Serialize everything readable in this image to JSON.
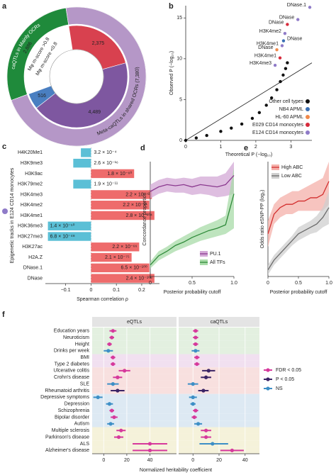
{
  "chart_data": [
    {
      "panel": "a",
      "type": "donut",
      "outer": [
        {
          "label": "caQTLs in Mainly OCRs",
          "value": 2886,
          "value_label": "2,886",
          "color": "#1f8a3b"
        },
        {
          "label": "Meta-caQTLs in shared OCRs (7,380)",
          "value": 7380,
          "color": "#b597c7"
        }
      ],
      "inner": [
        {
          "value": 2375,
          "value_label": "2,375",
          "color": "#d8414f"
        },
        {
          "value": 4489,
          "value_label": "4,489",
          "color": "#7e57a0"
        },
        {
          "value": 516,
          "value_label": "516",
          "color": "#4a7fc1"
        }
      ],
      "annotations": [
        {
          "text": "Mφ m-score >0.8",
          "color": "#4a7fc1"
        },
        {
          "text": "Mφ m-score <0.8",
          "color": "#d8414f"
        }
      ]
    },
    {
      "panel": "b",
      "type": "scatter",
      "xlabel": "Theoretical P (−log₁₀)",
      "ylabel": "Observed P (−log₁₀)",
      "xlim": [
        0,
        3.6
      ],
      "ylim": [
        0,
        16.5
      ],
      "xticks": [
        0,
        1,
        2,
        3
      ],
      "yticks": [
        0,
        5,
        10,
        15
      ],
      "reference_line": {
        "x": [
          0,
          3.6
        ],
        "y": [
          0,
          9.5
        ]
      },
      "series": [
        {
          "name": "Other cell types",
          "color": "#111111",
          "x": [
            0,
            0.3,
            0.6,
            1,
            1.3,
            1.6,
            1.9,
            2.1,
            2.3,
            2.45,
            2.6,
            2.7,
            2.78,
            2.85,
            2.9
          ],
          "y": [
            0,
            0.3,
            0.6,
            1.1,
            1.5,
            2,
            2.7,
            3.4,
            4.3,
            5.2,
            6.2,
            7.2,
            8,
            8.8,
            9.5
          ]
        },
        {
          "name": "NB4 APML",
          "color": "#3a6fb5",
          "x": [
            2.79
          ],
          "y": [
            12.2
          ],
          "labels": [
            "DNase"
          ]
        },
        {
          "name": "HL-60 APML",
          "color": "#f08a4b",
          "x": [
            2.6
          ],
          "y": [
            11.1
          ],
          "labels": [
            "DNase"
          ]
        },
        {
          "name": "E029 CD14 monocytes",
          "color": "#d62b3c",
          "x": [
            2.9,
            2.69
          ],
          "y": [
            14.2,
            10.1
          ],
          "labels": [
            "DNase",
            "H3K4me1"
          ]
        },
        {
          "name": "E124 CD14 monocytes",
          "color": "#8f7bc8",
          "x": [
            3.54,
            3.2,
            2.83,
            2.75,
            2.55
          ],
          "y": [
            16.3,
            14.8,
            13.1,
            11.6,
            9.2
          ],
          "labels": [
            "DNase.1",
            "DNase",
            "H3K4me2",
            "H3K4me1",
            "H3K4me3"
          ]
        }
      ],
      "legend": "lower right"
    },
    {
      "panel": "c",
      "type": "hbar",
      "xlabel": "Spearman correlation ρ",
      "ylabel": "Epigenetic tracks in E124 CD14 monocytes",
      "categories": [
        "H4K20Me1",
        "H3K9me3",
        "H3K9ac",
        "H3K79me2",
        "H3K4me3",
        "H3K4me2",
        "H3K4me1",
        "H3K36me3",
        "H3K27me3",
        "H3K27ac",
        "H2A.Z",
        "DNase.1",
        "DNase"
      ],
      "values": [
        -0.04,
        -0.07,
        0.17,
        -0.07,
        0.24,
        0.23,
        0.25,
        -0.17,
        -0.17,
        0.19,
        0.16,
        0.23,
        0.25
      ],
      "p_labels": [
        "3.2 × 10⁻⁴",
        "2.6 × 10⁻¹⁶",
        "1.8 × 10⁻⁶⁰",
        "1.9 × 10⁻¹¹",
        "2.2 × 10⁻⁷²",
        "2.2 × 10⁻⁸¹",
        "2.8 × 10⁻¹⁰⁴",
        "1.4 × 10⁻⁵⁰",
        "6.8 × 10⁻⁴⁸",
        "2.2 × 10⁻⁶⁶",
        "2.1 × 10⁻⁷⁵",
        "6.5 × 10⁻¹⁰⁰",
        "2.4 × 10⁻¹⁰⁶"
      ],
      "label_colors": [
        "#8a7aa6",
        "#7a3d8f",
        "#2e8b3a",
        "#2e8b3a",
        "#2e8b3a",
        "#2e8b3a",
        "#2e8b3a",
        "#7a3d8f",
        "#7a3d8f",
        "#2e8b3a",
        "#777777",
        "#777777",
        "#777777"
      ],
      "positive_color": "#ee6b6b",
      "negative_color": "#5bbfd6",
      "marker_color": "#8f7bc8",
      "xlim": [
        -0.18,
        0.27
      ],
      "xticks": [
        {
          "value": -0.1,
          "label": "−0.1"
        },
        0,
        0.1,
        0.2
      ]
    },
    {
      "panel": "d",
      "type": "line",
      "xlabel": "Posterior probability cutoff",
      "ylabel": "Concordance proportion",
      "x": [
        0,
        0.1,
        0.2,
        0.3,
        0.4,
        0.5,
        0.6,
        0.7,
        0.8,
        0.9,
        1
      ],
      "xlim": [
        0,
        1
      ],
      "ylim": [
        0,
        1
      ],
      "xticks": [
        0,
        0.5,
        {
          "value": 1,
          "label": "1.0"
        }
      ],
      "series": [
        {
          "name": "PU.1",
          "color": "#8b3a8f",
          "band_color": "#d3a8d6",
          "values": [
            0.74,
            0.78,
            0.8,
            0.79,
            0.8,
            0.78,
            0.8,
            0.79,
            0.78,
            0.8,
            0.88
          ],
          "lower": [
            0.68,
            0.72,
            0.74,
            0.73,
            0.73,
            0.71,
            0.72,
            0.71,
            0.69,
            0.7,
            0.72
          ],
          "upper": [
            0.8,
            0.84,
            0.86,
            0.85,
            0.86,
            0.85,
            0.87,
            0.87,
            0.87,
            0.9,
            1
          ]
        },
        {
          "name": "All TFs",
          "color": "#2f8a3a",
          "band_color": "#a8dba8",
          "values": [
            0.1,
            0.18,
            0.22,
            0.27,
            0.3,
            0.34,
            0.37,
            0.4,
            0.42,
            0.45,
            0.72
          ],
          "lower": [
            0.07,
            0.14,
            0.18,
            0.22,
            0.25,
            0.28,
            0.31,
            0.33,
            0.35,
            0.37,
            0.42
          ],
          "upper": [
            0.13,
            0.22,
            0.26,
            0.31,
            0.35,
            0.39,
            0.43,
            0.46,
            0.49,
            0.53,
            0.95
          ]
        }
      ],
      "legend": "lower right"
    },
    {
      "panel": "e",
      "type": "line",
      "xlabel": "Posterior probability cutoff",
      "ylabel": "Odds ratio eSNP-PP (log₂)",
      "x": [
        0,
        0.1,
        0.2,
        0.3,
        0.4,
        0.5,
        0.6,
        0.7,
        0.8,
        0.9,
        1
      ],
      "xlim": [
        0,
        1
      ],
      "ylim": [
        0,
        3.5
      ],
      "xticks": [
        0,
        0.5,
        {
          "value": 1,
          "label": "1.0"
        }
      ],
      "series": [
        {
          "name": "High ABC",
          "color": "#d32f2f",
          "band_color": "#f4b0aa",
          "values": [
            1.3,
            1.9,
            2.1,
            2.2,
            2.2,
            2.3,
            2.3,
            2.4,
            2.4,
            2.5,
            2.9
          ],
          "lower": [
            0.9,
            1.6,
            1.8,
            1.9,
            1.9,
            2,
            2,
            2,
            2,
            2,
            2.2
          ],
          "upper": [
            1.7,
            2.2,
            2.4,
            2.5,
            2.6,
            2.6,
            2.7,
            2.8,
            2.9,
            3,
            3.5
          ]
        },
        {
          "name": "Low ABC",
          "color": "#6b6b6b",
          "band_color": "#cfcfcf",
          "values": [
            0.2,
            0.5,
            0.7,
            0.9,
            1.1,
            1.3,
            1.4,
            1.5,
            1.6,
            1.8,
            2.1
          ],
          "lower": [
            0.05,
            0.35,
            0.55,
            0.75,
            0.95,
            1.1,
            1.2,
            1.3,
            1.35,
            1.5,
            1.6
          ],
          "upper": [
            0.35,
            0.65,
            0.85,
            1.05,
            1.25,
            1.5,
            1.6,
            1.7,
            1.85,
            2.1,
            2.6
          ]
        }
      ],
      "legend": "upper left"
    },
    {
      "panel": "f",
      "type": "forest",
      "xlabel": "Normalized heritability coefficient",
      "categories": [
        "Education years",
        "Neuroticism",
        "Height",
        "Drinks per week",
        "BMI",
        "Type 2 diabetes",
        "Ulcerative colitis",
        "Crohn's disease",
        "SLE",
        "Rheumatoid arthritis",
        "Depressive symptoms",
        "Depression",
        "Schizophrenia",
        "Bipolar disorder",
        "Autism",
        "Multiple sclerosis",
        "Parkinson's disease",
        "ALS",
        "Alzheimer's disease"
      ],
      "band_colors": [
        "#e3f0e0",
        "#e3f0e0",
        "#e3f0e0",
        "#e3f0e0",
        "#f1e0f0",
        "#f1e0f0",
        "#f8e0df",
        "#f8e0df",
        "#f8e0df",
        "#f8e0df",
        "#dde9f3",
        "#dde9f3",
        "#dde9f3",
        "#dde9f3",
        "#dde9f3",
        "#f5f2da",
        "#f5f2da",
        "#f5f2da",
        "#f5f2da"
      ],
      "legend": [
        {
          "name": "FDR < 0.05",
          "color": "#d6399c"
        },
        {
          "name": "P < 0.05",
          "color": "#3b2466"
        },
        {
          "name": "NS",
          "color": "#3d8fc6"
        }
      ],
      "facets": [
        {
          "title": "eQTLs",
          "xlim": [
            -10,
            63
          ],
          "xticks": [
            0,
            20,
            40
          ],
          "values": [
            8,
            7,
            5,
            4,
            8,
            8,
            18,
            12,
            8,
            12,
            -5,
            5,
            7,
            9,
            6,
            15,
            13,
            40,
            40
          ],
          "lower": [
            5,
            5,
            3,
            0,
            6,
            6,
            13,
            8,
            3,
            6,
            -9,
            2,
            5,
            6,
            3,
            11,
            9,
            25,
            25
          ],
          "upper": [
            11,
            9,
            7,
            8,
            10,
            10,
            23,
            16,
            13,
            18,
            -1,
            8,
            9,
            12,
            9,
            19,
            17,
            55,
            55
          ],
          "significance": [
            0,
            0,
            0,
            2,
            0,
            0,
            0,
            0,
            2,
            1,
            2,
            2,
            0,
            0,
            2,
            0,
            0,
            0,
            0
          ]
        },
        {
          "title": "caQTLs",
          "xlim": [
            -11,
            51
          ],
          "xticks": [
            0,
            20,
            40
          ],
          "values": [
            2,
            2,
            2,
            2,
            3,
            3,
            12,
            10,
            0,
            8,
            0,
            0,
            2,
            1,
            4,
            10,
            10,
            15,
            30
          ],
          "lower": [
            0,
            0,
            0,
            -1,
            1,
            1,
            7,
            6,
            -4,
            4,
            -3,
            -2,
            0,
            -1,
            1,
            6,
            6,
            5,
            21
          ],
          "upper": [
            4,
            4,
            4,
            5,
            5,
            5,
            17,
            14,
            4,
            12,
            3,
            2,
            4,
            3,
            7,
            14,
            14,
            27,
            39
          ],
          "significance": [
            0,
            0,
            0,
            2,
            0,
            0,
            1,
            1,
            2,
            1,
            2,
            2,
            0,
            0,
            2,
            0,
            0,
            2,
            0
          ]
        }
      ]
    }
  ]
}
